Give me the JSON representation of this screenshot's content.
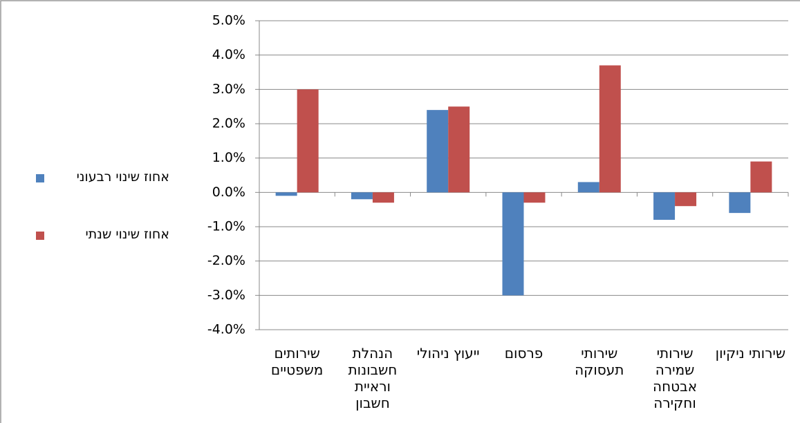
{
  "chart_data": {
    "type": "bar",
    "categories": [
      "שירותים משפטיים",
      "הנהלת חשבונות וראיית חשבון",
      "ייעוץ ניהולי",
      "פרסום",
      "שירותי תעסוקה",
      "שירותי שמירה אבטחה וחקירה",
      "שירותי ניקיון"
    ],
    "series": [
      {
        "name": "אחוז שינוי רבעוני",
        "color": "#4f81bd",
        "values": [
          -0.1,
          -0.2,
          2.4,
          -3.0,
          0.3,
          -0.8,
          -0.6
        ]
      },
      {
        "name": "אחוז שינוי שנתי",
        "color": "#c0504d",
        "values": [
          3.0,
          -0.3,
          2.5,
          -0.3,
          3.7,
          -0.4,
          0.9
        ]
      }
    ],
    "ylim": [
      -4,
      5
    ],
    "yticks": [
      {
        "value": -4,
        "label": "-4.0%"
      },
      {
        "value": -3,
        "label": "-3.0%"
      },
      {
        "value": -2,
        "label": "-2.0%"
      },
      {
        "value": -1,
        "label": "-1.0%"
      },
      {
        "value": 0,
        "label": "0.0%"
      },
      {
        "value": 1,
        "label": "1.0%"
      },
      {
        "value": 2,
        "label": "2.0%"
      },
      {
        "value": 3,
        "label": "3.0%"
      },
      {
        "value": 4,
        "label": "4.0%"
      },
      {
        "value": 5,
        "label": "5.0%"
      }
    ],
    "grid": true,
    "legend": "left"
  }
}
